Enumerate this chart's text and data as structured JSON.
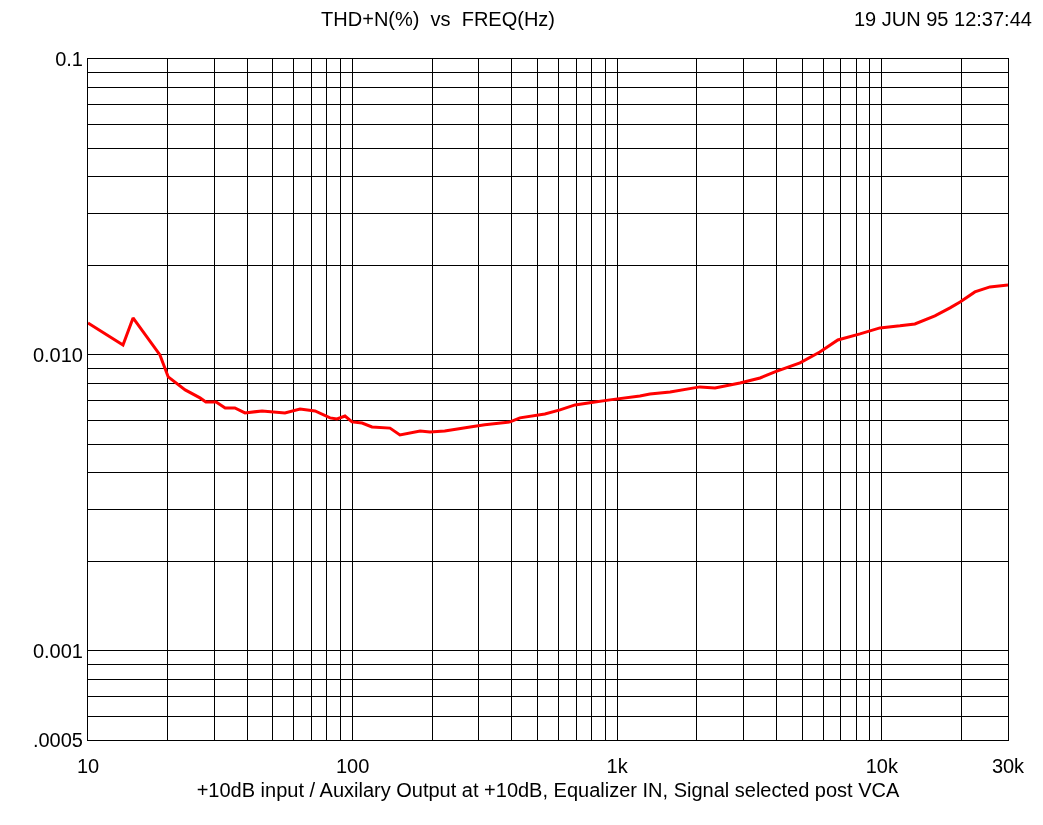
{
  "chart_data": {
    "type": "line",
    "title": "THD+N(%)  vs  FREQ(Hz)",
    "xlabel": "+10dB input / Auxilary Output at +10dB, Equalizer IN, Signal selected post VCA",
    "annotations": [
      "19 JUN 95 12:37:44"
    ],
    "log": "xy",
    "grid": true,
    "marker": "none",
    "line_style": "solid",
    "xlim": [
      10,
      30000
    ],
    "ylim": [
      0.0005,
      0.1
    ],
    "xticks": [
      10,
      100,
      {
        "value": 1000,
        "label": "1k"
      },
      {
        "value": 10000,
        "label": "10k"
      },
      {
        "value": 30000,
        "label": "30k"
      }
    ],
    "yticks": [
      {
        "value": 0.0005,
        "label": ".0005"
      },
      0.001,
      {
        "value": 0.01,
        "label": "0.010"
      },
      0.1
    ],
    "series": [
      {
        "color": "#ff0000",
        "x": [
          10,
          12.65,
          13.56,
          14.8,
          18.7,
          20.1,
          23.3,
          26.5,
          27.9,
          30.5,
          33,
          35.9,
          39.2,
          45.5,
          55.5,
          63.3,
          72.1,
          82.2,
          87.3,
          93.6,
          99.5,
          108.6,
          118.4,
          138.5,
          151,
          180,
          196,
          223,
          278,
          316,
          394,
          429,
          533,
          608,
          693,
          789,
          939,
          1219,
          1330,
          1585,
          2055,
          2343,
          2911,
          3467,
          3945,
          4909,
          5834,
          6823,
          8277,
          9840,
          11720,
          13340,
          15880,
          18110,
          19770,
          22490,
          25640,
          30000
        ],
        "values": [
          0.01283,
          0.01124,
          0.01081,
          0.01334,
          0.01,
          0.00843,
          0.00762,
          0.00716,
          0.00694,
          0.00694,
          0.00662,
          0.00662,
          0.00637,
          0.00647,
          0.00637,
          0.00657,
          0.00647,
          0.00613,
          0.00608,
          0.00622,
          0.00594,
          0.00589,
          0.00571,
          0.00566,
          0.00537,
          0.00553,
          0.00549,
          0.00553,
          0.00571,
          0.00581,
          0.00594,
          0.00613,
          0.00632,
          0.00652,
          0.00678,
          0.00689,
          0.00705,
          0.00727,
          0.00738,
          0.0075,
          0.0078,
          0.00774,
          0.00804,
          0.00836,
          0.00877,
          0.0094,
          0.01023,
          0.01124,
          0.01178,
          0.01234,
          0.01254,
          0.01273,
          0.01355,
          0.01442,
          0.0151,
          0.01633,
          0.01698,
          0.01723
        ]
      }
    ]
  }
}
